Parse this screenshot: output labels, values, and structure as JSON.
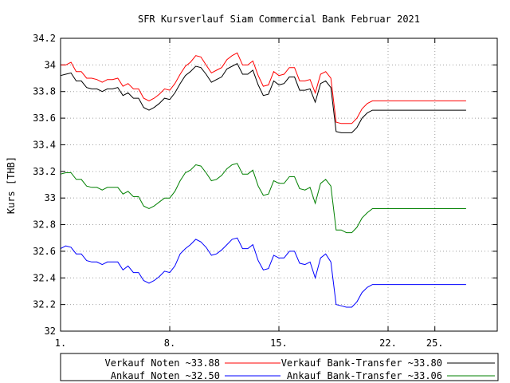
{
  "chart_data": {
    "type": "line",
    "title": "SFR Kursverlauf Siam Commercial Bank Februar 2021",
    "xlabel": "",
    "ylabel": "Kurs [THB]",
    "xlim": [
      1,
      29
    ],
    "ylim": [
      32,
      34.2
    ],
    "x_ticks": [
      {
        "value": 1,
        "label": "1."
      },
      {
        "value": 8,
        "label": "8."
      },
      {
        "value": 15,
        "label": "15."
      },
      {
        "value": 22,
        "label": "22."
      },
      {
        "value": 25,
        "label": "25."
      }
    ],
    "y_ticks": [
      32,
      32.2,
      32.4,
      32.6,
      32.8,
      33,
      33.2,
      33.4,
      33.6,
      33.8,
      34,
      34.2
    ],
    "y_tick_labels": [
      "32",
      "32.2",
      "32.4",
      "32.6",
      "32.8",
      "33",
      "33.2",
      "33.4",
      "33.6",
      "33.8",
      "34",
      "34.2"
    ],
    "grid": true,
    "legend_position": "bottom",
    "x": [
      1.0,
      1.33,
      1.67,
      2.0,
      2.33,
      2.67,
      3.0,
      3.33,
      3.67,
      4.0,
      4.33,
      4.67,
      5.0,
      5.33,
      5.67,
      6.0,
      6.33,
      6.67,
      7.0,
      7.33,
      7.67,
      8.0,
      8.33,
      8.67,
      9.0,
      9.33,
      9.67,
      10.0,
      10.33,
      10.67,
      11.0,
      11.33,
      11.67,
      12.0,
      12.33,
      12.67,
      13.0,
      13.33,
      13.67,
      14.0,
      14.33,
      14.67,
      15.0,
      15.33,
      15.67,
      16.0,
      16.33,
      16.67,
      17.0,
      17.33,
      17.67,
      18.0,
      18.33,
      18.67,
      19.0,
      19.33,
      19.67,
      20.0,
      20.33,
      20.67,
      21.0,
      21.33,
      21.67,
      22.0,
      22.33,
      22.67,
      23.0,
      23.33,
      23.67,
      24.0,
      24.33,
      24.67,
      25.0,
      25.33,
      25.67,
      26.0,
      26.33,
      26.67,
      27.0
    ],
    "series": [
      {
        "name": "Verkauf Noten ~33.88",
        "color": "#ff0000",
        "values": [
          34.0,
          34.0,
          34.02,
          33.95,
          33.95,
          33.9,
          33.9,
          33.89,
          33.87,
          33.89,
          33.89,
          33.9,
          33.84,
          33.86,
          33.82,
          33.82,
          33.75,
          33.73,
          33.75,
          33.78,
          33.82,
          33.81,
          33.86,
          33.93,
          33.99,
          34.02,
          34.07,
          34.06,
          34.0,
          33.94,
          33.96,
          33.98,
          34.04,
          34.07,
          34.09,
          34.0,
          34.0,
          34.03,
          33.92,
          33.84,
          33.85,
          33.95,
          33.92,
          33.93,
          33.98,
          33.98,
          33.88,
          33.88,
          33.89,
          33.79,
          33.93,
          33.95,
          33.9,
          33.57,
          33.56,
          33.56,
          33.56,
          33.6,
          33.67,
          33.71,
          33.73,
          33.73,
          33.73,
          33.73,
          33.73,
          33.73,
          33.73,
          33.73,
          33.73,
          33.73,
          33.73,
          33.73,
          33.73,
          33.73,
          33.73,
          33.73,
          33.73,
          33.73,
          33.73
        ]
      },
      {
        "name": "Verkauf Bank-Transfer ~33.80",
        "color": "#000000",
        "values": [
          33.92,
          33.93,
          33.94,
          33.88,
          33.88,
          33.83,
          33.82,
          33.82,
          33.8,
          33.82,
          33.82,
          33.83,
          33.77,
          33.79,
          33.75,
          33.75,
          33.68,
          33.66,
          33.68,
          33.71,
          33.75,
          33.74,
          33.79,
          33.86,
          33.92,
          33.95,
          33.99,
          33.98,
          33.93,
          33.87,
          33.89,
          33.91,
          33.97,
          33.99,
          34.01,
          33.93,
          33.93,
          33.96,
          33.85,
          33.77,
          33.78,
          33.88,
          33.85,
          33.86,
          33.91,
          33.91,
          33.81,
          33.81,
          33.82,
          33.72,
          33.86,
          33.88,
          33.83,
          33.5,
          33.49,
          33.49,
          33.49,
          33.53,
          33.6,
          33.64,
          33.66,
          33.66,
          33.66,
          33.66,
          33.66,
          33.66,
          33.66,
          33.66,
          33.66,
          33.66,
          33.66,
          33.66,
          33.66,
          33.66,
          33.66,
          33.66,
          33.66,
          33.66,
          33.66
        ]
      },
      {
        "name": "Ankauf Noten ~32.50",
        "color": "#0000ff",
        "values": [
          32.62,
          32.64,
          32.63,
          32.58,
          32.58,
          32.53,
          32.52,
          32.52,
          32.5,
          32.52,
          32.52,
          32.52,
          32.46,
          32.49,
          32.44,
          32.44,
          32.38,
          32.36,
          32.38,
          32.41,
          32.45,
          32.44,
          32.49,
          32.58,
          32.62,
          32.65,
          32.69,
          32.67,
          32.63,
          32.57,
          32.58,
          32.61,
          32.65,
          32.69,
          32.7,
          32.62,
          32.62,
          32.65,
          32.53,
          32.46,
          32.47,
          32.57,
          32.55,
          32.55,
          32.6,
          32.6,
          32.51,
          32.5,
          32.52,
          32.4,
          32.55,
          32.58,
          32.52,
          32.2,
          32.19,
          32.18,
          32.18,
          32.22,
          32.29,
          32.33,
          32.35,
          32.35,
          32.35,
          32.35,
          32.35,
          32.35,
          32.35,
          32.35,
          32.35,
          32.35,
          32.35,
          32.35,
          32.35,
          32.35,
          32.35,
          32.35,
          32.35,
          32.35,
          32.35
        ]
      },
      {
        "name": "Ankauf Bank-Transfer ~33.06",
        "color": "#008000",
        "values": [
          33.18,
          33.19,
          33.19,
          33.14,
          33.14,
          33.09,
          33.08,
          33.08,
          33.06,
          33.08,
          33.08,
          33.08,
          33.03,
          33.05,
          33.01,
          33.01,
          32.94,
          32.92,
          32.94,
          32.97,
          33.0,
          33.0,
          33.05,
          33.13,
          33.19,
          33.21,
          33.25,
          33.24,
          33.19,
          33.13,
          33.14,
          33.17,
          33.22,
          33.25,
          33.26,
          33.18,
          33.18,
          33.21,
          33.09,
          33.02,
          33.03,
          33.13,
          33.11,
          33.11,
          33.16,
          33.16,
          33.07,
          33.06,
          33.08,
          32.96,
          33.11,
          33.14,
          33.09,
          32.76,
          32.76,
          32.74,
          32.74,
          32.78,
          32.85,
          32.89,
          32.92,
          32.92,
          32.92,
          32.92,
          32.92,
          32.92,
          32.92,
          32.92,
          32.92,
          32.92,
          32.92,
          32.92,
          32.92,
          32.92,
          32.92,
          32.92,
          32.92,
          32.92,
          32.92
        ]
      }
    ]
  }
}
